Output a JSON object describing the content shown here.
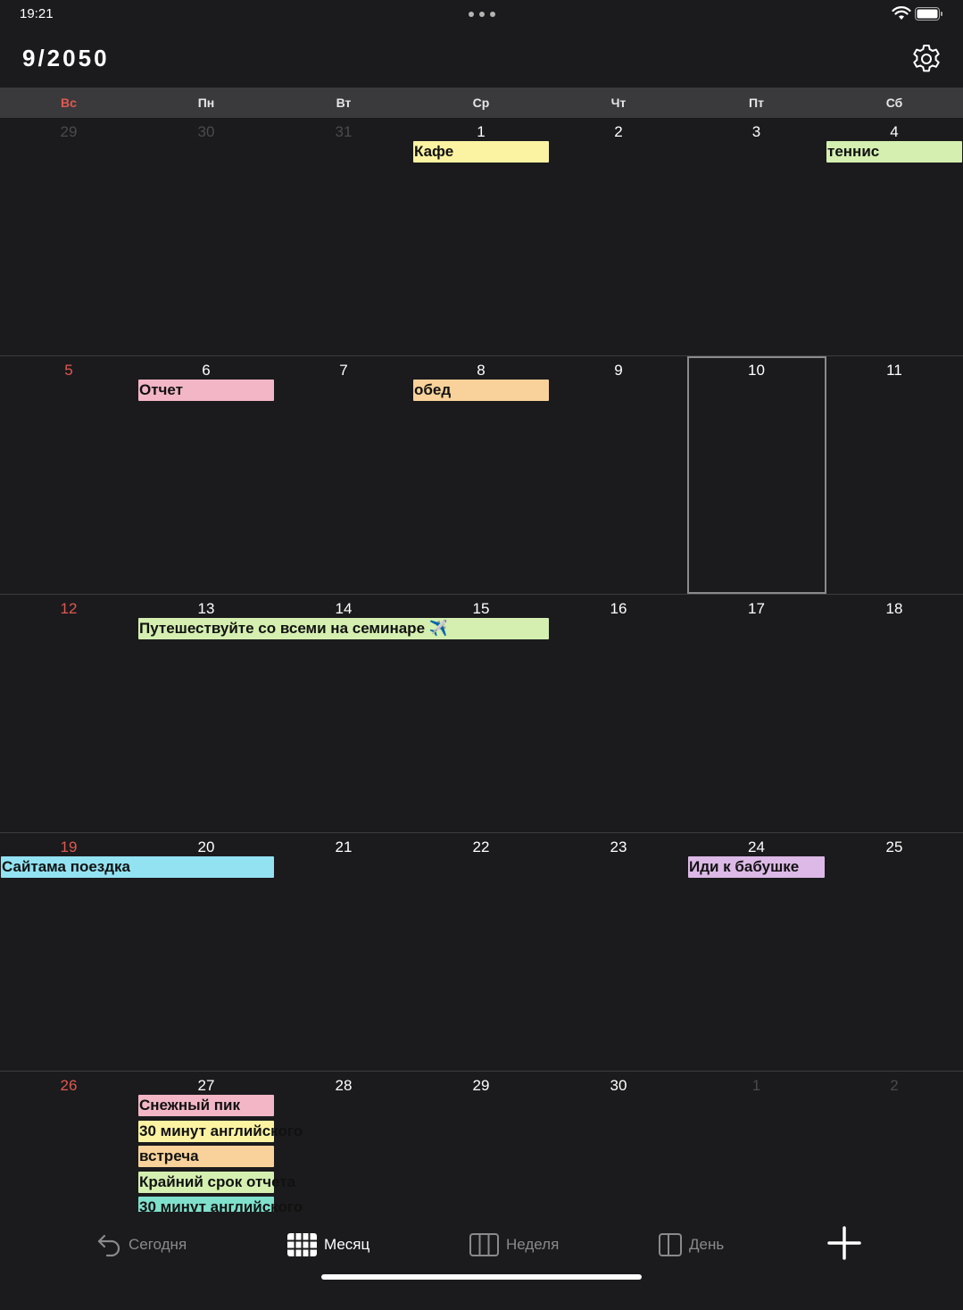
{
  "status": {
    "time": "19:21"
  },
  "header": {
    "title": "9/2050"
  },
  "weekdays": [
    "Вс",
    "Пн",
    "Вт",
    "Ср",
    "Чт",
    "Пт",
    "Сб"
  ],
  "weeks": [
    [
      {
        "n": "29",
        "other": true
      },
      {
        "n": "30",
        "other": true
      },
      {
        "n": "31",
        "other": true
      },
      {
        "n": "1"
      },
      {
        "n": "2"
      },
      {
        "n": "3"
      },
      {
        "n": "4"
      }
    ],
    [
      {
        "n": "5"
      },
      {
        "n": "6"
      },
      {
        "n": "7"
      },
      {
        "n": "8"
      },
      {
        "n": "9"
      },
      {
        "n": "10",
        "today": true
      },
      {
        "n": "11"
      }
    ],
    [
      {
        "n": "12"
      },
      {
        "n": "13"
      },
      {
        "n": "14"
      },
      {
        "n": "15"
      },
      {
        "n": "16"
      },
      {
        "n": "17"
      },
      {
        "n": "18"
      }
    ],
    [
      {
        "n": "19"
      },
      {
        "n": "20"
      },
      {
        "n": "21"
      },
      {
        "n": "22"
      },
      {
        "n": "23"
      },
      {
        "n": "24"
      },
      {
        "n": "25"
      }
    ],
    [
      {
        "n": "26"
      },
      {
        "n": "27"
      },
      {
        "n": "28"
      },
      {
        "n": "29"
      },
      {
        "n": "30"
      },
      {
        "n": "1",
        "other": true
      },
      {
        "n": "2",
        "other": true
      }
    ]
  ],
  "events": [
    {
      "title": "Кафе",
      "week": 0,
      "start": 3,
      "span": 1,
      "slot": 0,
      "color": "#fbf3a2"
    },
    {
      "title": "теннис",
      "week": 0,
      "start": 6,
      "span": 1,
      "slot": 0,
      "color": "#d4efb0"
    },
    {
      "title": "Отчет",
      "week": 1,
      "start": 1,
      "span": 1,
      "slot": 0,
      "color": "#f2b6c6"
    },
    {
      "title": "обед",
      "week": 1,
      "start": 3,
      "span": 1,
      "slot": 0,
      "color": "#f8d29a"
    },
    {
      "title": "Путешествуйте со всеми на семинаре ✈️",
      "week": 2,
      "start": 1,
      "span": 3,
      "slot": 0,
      "color": "#d4efb0"
    },
    {
      "title": "Сайтама поездка",
      "week": 3,
      "start": 0,
      "span": 2,
      "slot": 0,
      "color": "#92e2f2"
    },
    {
      "title": "Иди к бабушке",
      "week": 3,
      "start": 5,
      "span": 1,
      "slot": 0,
      "color": "#dcb9e6"
    },
    {
      "title": "Снежный пик",
      "week": 4,
      "start": 1,
      "span": 1,
      "slot": 0,
      "color": "#f2b6c6"
    },
    {
      "title": "30 минут английского",
      "week": 4,
      "start": 1,
      "span": 1,
      "slot": 1,
      "color": "#fbf3a2"
    },
    {
      "title": "встреча",
      "week": 4,
      "start": 1,
      "span": 1,
      "slot": 2,
      "color": "#f8d29a"
    },
    {
      "title": "Крайний срок отчета",
      "week": 4,
      "start": 1,
      "span": 1,
      "slot": 3,
      "color": "#d4efb0"
    },
    {
      "title": "30 минут английского",
      "week": 4,
      "start": 1,
      "span": 1,
      "slot": 4,
      "color": "#7fe0cc"
    }
  ],
  "tabs": {
    "today": "Сегодня",
    "month": "Месяц",
    "week": "Неделя",
    "day": "День"
  },
  "icons": [
    "back-arrow-icon",
    "month-grid-icon",
    "week-columns-icon",
    "day-columns-icon",
    "plus-icon",
    "gear-icon",
    "wifi-icon",
    "battery-icon"
  ],
  "colors": {
    "sunday": "#e0584f",
    "background": "#1b1b1d",
    "weekday_bar": "#3a3a3c"
  }
}
